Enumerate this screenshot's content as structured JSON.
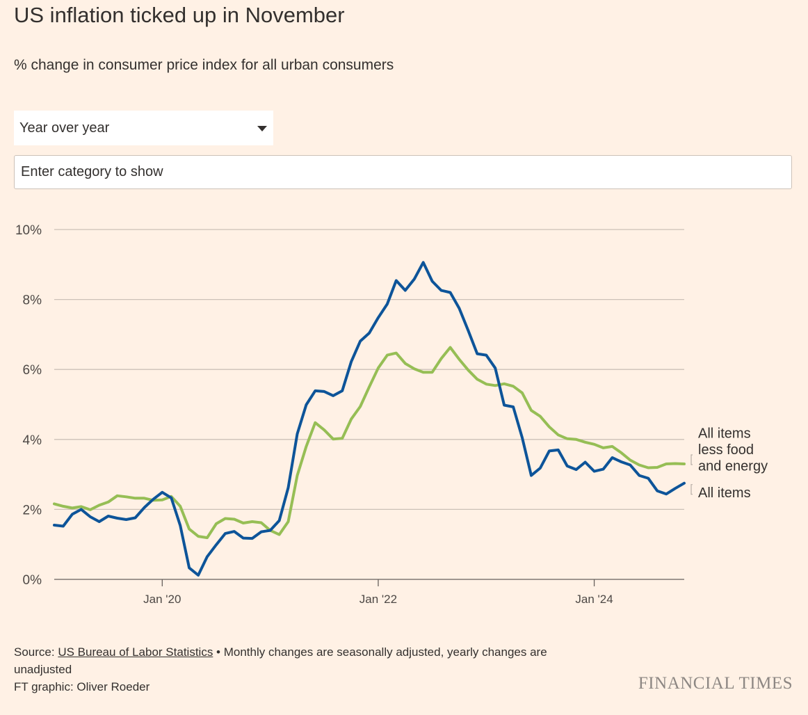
{
  "header": {
    "title": "US inflation ticked up in November",
    "subtitle": "% change in consumer price index for all urban consumers"
  },
  "controls": {
    "dropdown_value": "Year over year",
    "search_placeholder": "Enter category to show"
  },
  "footer": {
    "source_prefix": "Source: ",
    "source_link": "US Bureau of Labor Statistics",
    "source_note": " • Monthly changes are seasonally adjusted, yearly changes are unadjusted",
    "credit": "FT graphic: Oliver Roeder",
    "brand": "FINANCIAL TIMES"
  },
  "colors": {
    "background": "#FFF1E5",
    "all_items": "#0D5499",
    "core": "#96BE55",
    "gridline": "#CCC1B7"
  },
  "icons": {
    "dropdown": "chevron-down-icon"
  },
  "chart_data": {
    "type": "line",
    "x_start": "2019-01",
    "x_end": "2024-11",
    "ylim": [
      0,
      10
    ],
    "yticks": [
      0,
      2,
      4,
      6,
      8,
      10
    ],
    "ytick_labels": [
      "0%",
      "2%",
      "4%",
      "6%",
      "8%",
      "10%"
    ],
    "xticks": [
      "2020-01",
      "2022-01",
      "2024-01"
    ],
    "xtick_labels": [
      "Jan '20",
      "Jan '22",
      "Jan '24"
    ],
    "grid": true,
    "series": [
      {
        "name": "All items",
        "label_lines": [
          "All items"
        ],
        "color": "#0D5499",
        "values": [
          1.55,
          1.52,
          1.86,
          2.0,
          1.79,
          1.65,
          1.81,
          1.75,
          1.71,
          1.76,
          2.05,
          2.29,
          2.49,
          2.33,
          1.54,
          0.33,
          0.12,
          0.65,
          0.99,
          1.31,
          1.37,
          1.18,
          1.17,
          1.36,
          1.4,
          1.68,
          2.62,
          4.16,
          4.99,
          5.39,
          5.37,
          5.25,
          5.39,
          6.22,
          6.81,
          7.04,
          7.48,
          7.87,
          8.54,
          8.26,
          8.58,
          9.06,
          8.52,
          8.26,
          8.2,
          7.75,
          7.11,
          6.45,
          6.41,
          6.04,
          4.98,
          4.93,
          4.05,
          2.97,
          3.18,
          3.67,
          3.7,
          3.24,
          3.14,
          3.35,
          3.09,
          3.15,
          3.48,
          3.36,
          3.27,
          2.97,
          2.89,
          2.53,
          2.44,
          2.6,
          2.75
        ]
      },
      {
        "name": "All items less food and energy",
        "label_lines": [
          "All items",
          "less food",
          "and energy"
        ],
        "color": "#96BE55",
        "values": [
          2.16,
          2.09,
          2.04,
          2.08,
          1.99,
          2.12,
          2.21,
          2.39,
          2.36,
          2.32,
          2.32,
          2.26,
          2.27,
          2.37,
          2.09,
          1.44,
          1.23,
          1.19,
          1.59,
          1.74,
          1.72,
          1.61,
          1.65,
          1.62,
          1.4,
          1.28,
          1.65,
          2.97,
          3.8,
          4.48,
          4.27,
          4.01,
          4.03,
          4.58,
          4.94,
          5.5,
          6.04,
          6.41,
          6.47,
          6.17,
          6.02,
          5.92,
          5.92,
          6.31,
          6.63,
          6.29,
          5.98,
          5.72,
          5.58,
          5.54,
          5.59,
          5.52,
          5.33,
          4.83,
          4.66,
          4.36,
          4.13,
          4.02,
          4.0,
          3.92,
          3.86,
          3.76,
          3.8,
          3.62,
          3.41,
          3.27,
          3.19,
          3.2,
          3.3,
          3.31,
          3.3
        ]
      }
    ]
  }
}
